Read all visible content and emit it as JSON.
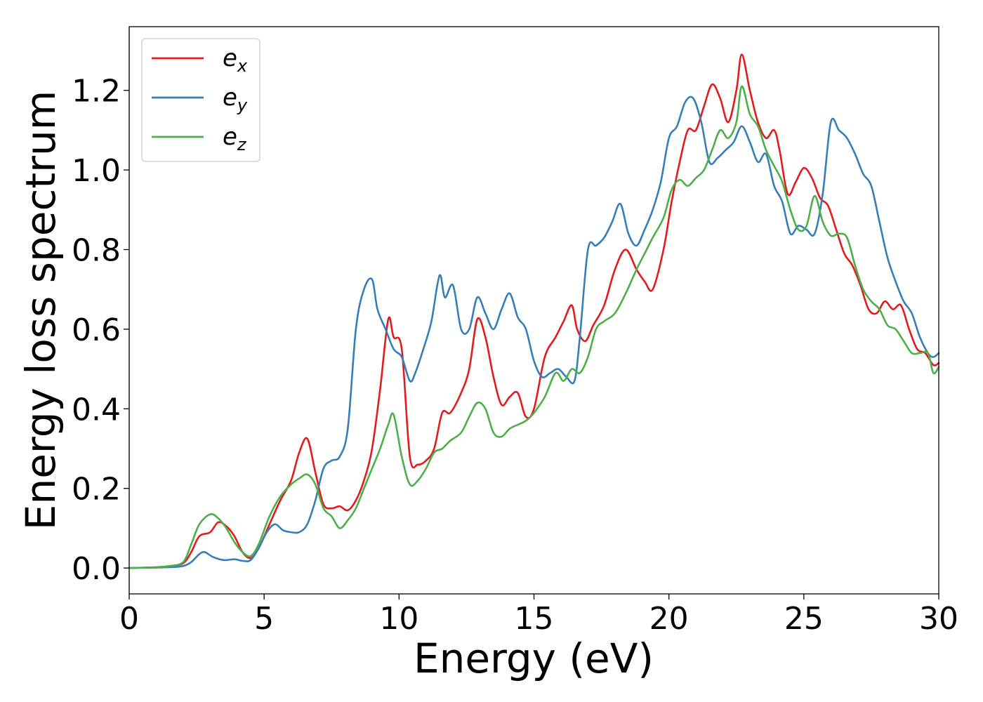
{
  "chart_data": {
    "type": "line",
    "title": "",
    "xlabel": "Energy (eV)",
    "ylabel": "Energy loss spectrum",
    "xlim": [
      0,
      30
    ],
    "ylim": [
      -0.065,
      1.36
    ],
    "xticks": [
      0,
      5,
      10,
      15,
      20,
      25,
      30
    ],
    "xtick_labels": [
      "0",
      "5",
      "10",
      "15",
      "20",
      "25",
      "30"
    ],
    "yticks": [
      0.0,
      0.2,
      0.4,
      0.6,
      0.8,
      1.0,
      1.2
    ],
    "ytick_labels": [
      "0.0",
      "0.2",
      "0.4",
      "0.6",
      "0.8",
      "1.0",
      "1.2"
    ],
    "grid": false,
    "legend_position": "top-left",
    "series": [
      {
        "name": "e",
        "subscript": "x",
        "color": "#e41a1c",
        "x": [
          0,
          1,
          1.5,
          2,
          2.3,
          2.6,
          3.0,
          3.3,
          3.6,
          3.9,
          4.2,
          4.5,
          4.8,
          5.2,
          5.6,
          6.0,
          6.3,
          6.6,
          6.9,
          7.2,
          7.5,
          7.8,
          8.1,
          8.4,
          8.7,
          9.0,
          9.3,
          9.6,
          9.8,
          10.1,
          10.4,
          10.7,
          11.0,
          11.3,
          11.6,
          11.9,
          12.3,
          12.6,
          12.9,
          13.2,
          13.5,
          13.8,
          14.1,
          14.4,
          14.7,
          15.0,
          15.4,
          15.8,
          16.1,
          16.4,
          16.6,
          16.9,
          17.2,
          17.6,
          18.0,
          18.4,
          18.8,
          19.1,
          19.4,
          19.8,
          20.1,
          20.4,
          20.7,
          21.0,
          21.3,
          21.6,
          21.9,
          22.2,
          22.5,
          22.7,
          23.0,
          23.3,
          23.6,
          23.9,
          24.1,
          24.4,
          24.7,
          25.0,
          25.3,
          25.6,
          25.9,
          26.2,
          26.5,
          26.8,
          27.1,
          27.4,
          27.7,
          28.0,
          28.3,
          28.6,
          28.9,
          29.2,
          29.5,
          29.8,
          30.0
        ],
        "values": [
          0.0,
          0.002,
          0.005,
          0.012,
          0.04,
          0.08,
          0.09,
          0.115,
          0.105,
          0.08,
          0.04,
          0.025,
          0.05,
          0.11,
          0.17,
          0.22,
          0.29,
          0.325,
          0.24,
          0.16,
          0.15,
          0.155,
          0.145,
          0.17,
          0.22,
          0.3,
          0.45,
          0.625,
          0.58,
          0.55,
          0.28,
          0.26,
          0.27,
          0.3,
          0.39,
          0.39,
          0.44,
          0.5,
          0.625,
          0.58,
          0.48,
          0.41,
          0.43,
          0.44,
          0.38,
          0.4,
          0.53,
          0.58,
          0.62,
          0.66,
          0.6,
          0.57,
          0.61,
          0.66,
          0.75,
          0.8,
          0.75,
          0.72,
          0.7,
          0.8,
          0.92,
          1.02,
          1.1,
          1.1,
          1.16,
          1.215,
          1.18,
          1.12,
          1.2,
          1.29,
          1.2,
          1.12,
          1.08,
          1.1,
          1.05,
          0.94,
          0.97,
          1.005,
          0.98,
          0.93,
          0.91,
          0.85,
          0.79,
          0.76,
          0.71,
          0.65,
          0.64,
          0.67,
          0.65,
          0.66,
          0.6,
          0.55,
          0.54,
          0.51,
          0.515
        ]
      },
      {
        "name": "e",
        "subscript": "y",
        "color": "#377eb8",
        "x": [
          0,
          1,
          1.5,
          2,
          2.3,
          2.6,
          2.8,
          3.1,
          3.5,
          3.9,
          4.2,
          4.5,
          4.8,
          5.1,
          5.4,
          5.7,
          6.0,
          6.3,
          6.6,
          6.9,
          7.2,
          7.5,
          7.8,
          8.1,
          8.4,
          8.7,
          9.0,
          9.2,
          9.5,
          9.8,
          10.1,
          10.4,
          10.6,
          10.9,
          11.2,
          11.5,
          11.7,
          12.0,
          12.3,
          12.6,
          12.9,
          13.2,
          13.5,
          13.8,
          14.1,
          14.4,
          14.7,
          15.0,
          15.3,
          15.6,
          15.9,
          16.2,
          16.5,
          16.7,
          17.0,
          17.3,
          17.6,
          17.9,
          18.2,
          18.5,
          18.8,
          19.1,
          19.4,
          19.7,
          20.0,
          20.3,
          20.6,
          20.9,
          21.2,
          21.5,
          21.8,
          22.1,
          22.4,
          22.7,
          23.0,
          23.3,
          23.6,
          23.9,
          24.2,
          24.5,
          24.8,
          25.1,
          25.4,
          25.7,
          26.0,
          26.3,
          26.6,
          26.9,
          27.2,
          27.5,
          27.8,
          28.1,
          28.4,
          28.7,
          29.0,
          29.3,
          29.6,
          29.8,
          30.0
        ],
        "values": [
          0.0,
          0.001,
          0.002,
          0.005,
          0.015,
          0.035,
          0.04,
          0.028,
          0.02,
          0.022,
          0.018,
          0.02,
          0.05,
          0.09,
          0.11,
          0.095,
          0.09,
          0.09,
          0.11,
          0.17,
          0.25,
          0.27,
          0.28,
          0.35,
          0.6,
          0.7,
          0.725,
          0.65,
          0.6,
          0.55,
          0.53,
          0.47,
          0.49,
          0.55,
          0.62,
          0.735,
          0.68,
          0.71,
          0.6,
          0.6,
          0.68,
          0.64,
          0.6,
          0.65,
          0.69,
          0.63,
          0.6,
          0.52,
          0.48,
          0.49,
          0.5,
          0.48,
          0.47,
          0.58,
          0.8,
          0.81,
          0.83,
          0.87,
          0.915,
          0.84,
          0.81,
          0.85,
          0.9,
          0.97,
          1.08,
          1.11,
          1.17,
          1.18,
          1.12,
          1.02,
          1.03,
          1.05,
          1.07,
          1.11,
          1.07,
          1.02,
          1.04,
          0.96,
          0.92,
          0.84,
          0.86,
          0.85,
          0.84,
          0.94,
          1.12,
          1.1,
          1.08,
          1.04,
          0.99,
          0.96,
          0.87,
          0.78,
          0.72,
          0.67,
          0.64,
          0.58,
          0.54,
          0.53,
          0.54
        ]
      },
      {
        "name": "e",
        "subscript": "z",
        "color": "#4daf4a",
        "x": [
          0,
          1,
          1.5,
          2,
          2.3,
          2.6,
          3.0,
          3.3,
          3.6,
          3.9,
          4.2,
          4.5,
          4.8,
          5.2,
          5.6,
          6.0,
          6.3,
          6.6,
          6.9,
          7.2,
          7.5,
          7.8,
          8.1,
          8.4,
          8.7,
          9.0,
          9.3,
          9.6,
          9.8,
          10.1,
          10.4,
          10.7,
          11.0,
          11.3,
          11.6,
          11.9,
          12.3,
          12.6,
          12.9,
          13.2,
          13.5,
          13.8,
          14.1,
          14.4,
          14.7,
          15.0,
          15.4,
          15.8,
          16.1,
          16.4,
          16.7,
          17.0,
          17.3,
          17.6,
          18.0,
          18.4,
          18.8,
          19.1,
          19.4,
          19.8,
          20.1,
          20.4,
          20.7,
          21.0,
          21.3,
          21.6,
          21.9,
          22.2,
          22.5,
          22.7,
          23.0,
          23.3,
          23.6,
          23.9,
          24.2,
          24.5,
          24.8,
          25.1,
          25.4,
          25.7,
          26.0,
          26.3,
          26.6,
          26.9,
          27.2,
          27.5,
          27.8,
          28.1,
          28.4,
          28.7,
          29.0,
          29.3,
          29.6,
          29.8,
          30.0
        ],
        "values": [
          0.0,
          0.002,
          0.005,
          0.015,
          0.06,
          0.11,
          0.135,
          0.125,
          0.1,
          0.065,
          0.04,
          0.03,
          0.06,
          0.13,
          0.18,
          0.21,
          0.225,
          0.235,
          0.21,
          0.15,
          0.13,
          0.1,
          0.12,
          0.15,
          0.2,
          0.25,
          0.3,
          0.36,
          0.385,
          0.28,
          0.21,
          0.22,
          0.25,
          0.29,
          0.3,
          0.32,
          0.34,
          0.38,
          0.415,
          0.4,
          0.34,
          0.33,
          0.35,
          0.36,
          0.37,
          0.39,
          0.43,
          0.49,
          0.47,
          0.5,
          0.49,
          0.53,
          0.6,
          0.62,
          0.64,
          0.69,
          0.75,
          0.79,
          0.83,
          0.88,
          0.95,
          0.975,
          0.96,
          0.98,
          1.0,
          1.05,
          1.1,
          1.08,
          1.12,
          1.21,
          1.14,
          1.11,
          1.05,
          1.01,
          0.97,
          0.9,
          0.85,
          0.86,
          0.935,
          0.87,
          0.835,
          0.84,
          0.83,
          0.76,
          0.7,
          0.67,
          0.65,
          0.61,
          0.6,
          0.57,
          0.54,
          0.54,
          0.54,
          0.49,
          0.505
        ]
      }
    ]
  }
}
